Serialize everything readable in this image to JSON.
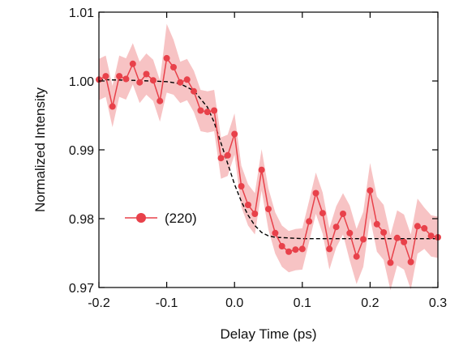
{
  "chart_data": {
    "type": "line",
    "title": "",
    "xlabel": "Delay Time (ps)",
    "ylabel": "Normalized Intensity",
    "xlim": [
      -0.2,
      0.3
    ],
    "ylim": [
      0.97,
      1.01
    ],
    "x_ticks": [
      -0.2,
      -0.1,
      0.0,
      0.1,
      0.2,
      0.3
    ],
    "x_tick_labels": [
      "-0.2",
      "-0.1",
      "0.0",
      "0.1",
      "0.2",
      "0.3"
    ],
    "y_ticks": [
      0.97,
      0.98,
      0.99,
      1.0,
      1.01
    ],
    "y_tick_labels": [
      "0.97",
      "0.98",
      "0.99",
      "1.00",
      "1.01"
    ],
    "grid": false,
    "legend_position": "left",
    "colors": {
      "series": "#e8414a",
      "band": "#f7c3c4",
      "fit": "#000000",
      "axis": "#000000"
    },
    "series": [
      {
        "name": "(220)",
        "marker": "circle",
        "x": [
          -0.2,
          -0.19,
          -0.18,
          -0.17,
          -0.16,
          -0.15,
          -0.14,
          -0.13,
          -0.12,
          -0.11,
          -0.1,
          -0.09,
          -0.08,
          -0.07,
          -0.06,
          -0.05,
          -0.04,
          -0.03,
          -0.02,
          -0.01,
          0.0,
          0.01,
          0.02,
          0.03,
          0.04,
          0.05,
          0.06,
          0.07,
          0.08,
          0.09,
          0.1,
          0.11,
          0.12,
          0.13,
          0.14,
          0.15,
          0.16,
          0.17,
          0.18,
          0.19,
          0.2,
          0.21,
          0.22,
          0.23,
          0.24,
          0.25,
          0.26,
          0.27,
          0.28,
          0.29,
          0.3
        ],
        "y": [
          1.0002,
          1.0007,
          0.9963,
          1.0007,
          1.0003,
          1.0025,
          0.9998,
          1.001,
          1.0001,
          0.9971,
          1.0033,
          1.002,
          0.9998,
          1.0002,
          0.9985,
          0.9957,
          0.9955,
          0.9957,
          0.9888,
          0.9892,
          0.9923,
          0.9847,
          0.982,
          0.9807,
          0.9871,
          0.9814,
          0.9779,
          0.976,
          0.9752,
          0.9755,
          0.9756,
          0.9796,
          0.9837,
          0.9808,
          0.9756,
          0.9788,
          0.9807,
          0.9779,
          0.9745,
          0.977,
          0.9841,
          0.9792,
          0.978,
          0.9736,
          0.9772,
          0.9766,
          0.9737,
          0.9789,
          0.9786,
          0.9775,
          0.9773
        ],
        "error": [
          0.003,
          0.003,
          0.003,
          0.003,
          0.003,
          0.003,
          0.003,
          0.003,
          0.003,
          0.003,
          0.005,
          0.004,
          0.003,
          0.003,
          0.003,
          0.003,
          0.003,
          0.003,
          0.003,
          0.003,
          0.003,
          0.003,
          0.003,
          0.003,
          0.003,
          0.003,
          0.003,
          0.003,
          0.003,
          0.003,
          0.003,
          0.003,
          0.003,
          0.003,
          0.003,
          0.003,
          0.003,
          0.004,
          0.004,
          0.004,
          0.004,
          0.004,
          0.004,
          0.004,
          0.004,
          0.004,
          0.004,
          0.004,
          0.003,
          0.003,
          0.003
        ]
      },
      {
        "style": "dashed",
        "x": [
          -0.2,
          -0.15,
          -0.1,
          -0.08,
          -0.06,
          -0.04,
          -0.03,
          -0.02,
          -0.01,
          0.0,
          0.01,
          0.02,
          0.03,
          0.04,
          0.05,
          0.06,
          0.08,
          0.1,
          0.15,
          0.2,
          0.25,
          0.3
        ],
        "y": [
          1.0002,
          1.0001,
          0.9999,
          0.9996,
          0.9986,
          0.9962,
          0.994,
          0.991,
          0.988,
          0.985,
          0.9825,
          0.9805,
          0.979,
          0.978,
          0.9775,
          0.9773,
          0.9772,
          0.9771,
          0.9771,
          0.9771,
          0.9771,
          0.9771
        ]
      }
    ]
  }
}
